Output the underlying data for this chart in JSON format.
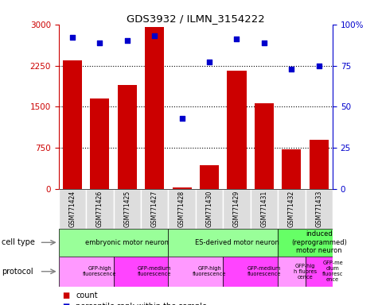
{
  "title": "GDS3932 / ILMN_3154222",
  "samples": [
    "GSM771424",
    "GSM771426",
    "GSM771425",
    "GSM771427",
    "GSM771428",
    "GSM771430",
    "GSM771429",
    "GSM771431",
    "GSM771432",
    "GSM771433"
  ],
  "counts": [
    2350,
    1650,
    1900,
    2950,
    30,
    430,
    2150,
    1570,
    730,
    900
  ],
  "percentiles": [
    92,
    89,
    90,
    93,
    43,
    77,
    91,
    89,
    73,
    75
  ],
  "ylim_left": [
    0,
    3000
  ],
  "ylim_right": [
    0,
    100
  ],
  "yticks_left": [
    0,
    750,
    1500,
    2250,
    3000
  ],
  "yticks_right": [
    0,
    25,
    50,
    75,
    100
  ],
  "bar_color": "#CC0000",
  "dot_color": "#0000CC",
  "cell_types": [
    {
      "label": "embryonic motor neuron",
      "start": 0,
      "end": 4,
      "color": "#99FF99"
    },
    {
      "label": "ES-derived motor neuron",
      "start": 4,
      "end": 8,
      "color": "#99FF99"
    },
    {
      "label": "induced\n(reprogrammed)\nmotor neuron",
      "start": 8,
      "end": 10,
      "color": "#66FF66"
    }
  ],
  "protocols": [
    {
      "label": "GFP-high\nfluorescence",
      "start": 0,
      "end": 2,
      "color": "#FF99FF"
    },
    {
      "label": "GFP-medium\nfluorescence",
      "start": 2,
      "end": 4,
      "color": "#FF44FF"
    },
    {
      "label": "GFP-high\nfluorescence",
      "start": 4,
      "end": 6,
      "color": "#FF99FF"
    },
    {
      "label": "GFP-medium\nfluorescence",
      "start": 6,
      "end": 8,
      "color": "#FF44FF"
    },
    {
      "label": "GFP-hig\nh fluores\ncence",
      "start": 8,
      "end": 9,
      "color": "#FF99FF"
    },
    {
      "label": "GFP-me\ndium\nfluoresc\nence",
      "start": 9,
      "end": 10,
      "color": "#FF44FF"
    }
  ],
  "tick_bg_color": "#DDDDDD",
  "left_axis_color": "#CC0000",
  "right_axis_color": "#0000CC",
  "hlines": [
    750,
    1500,
    2250
  ]
}
